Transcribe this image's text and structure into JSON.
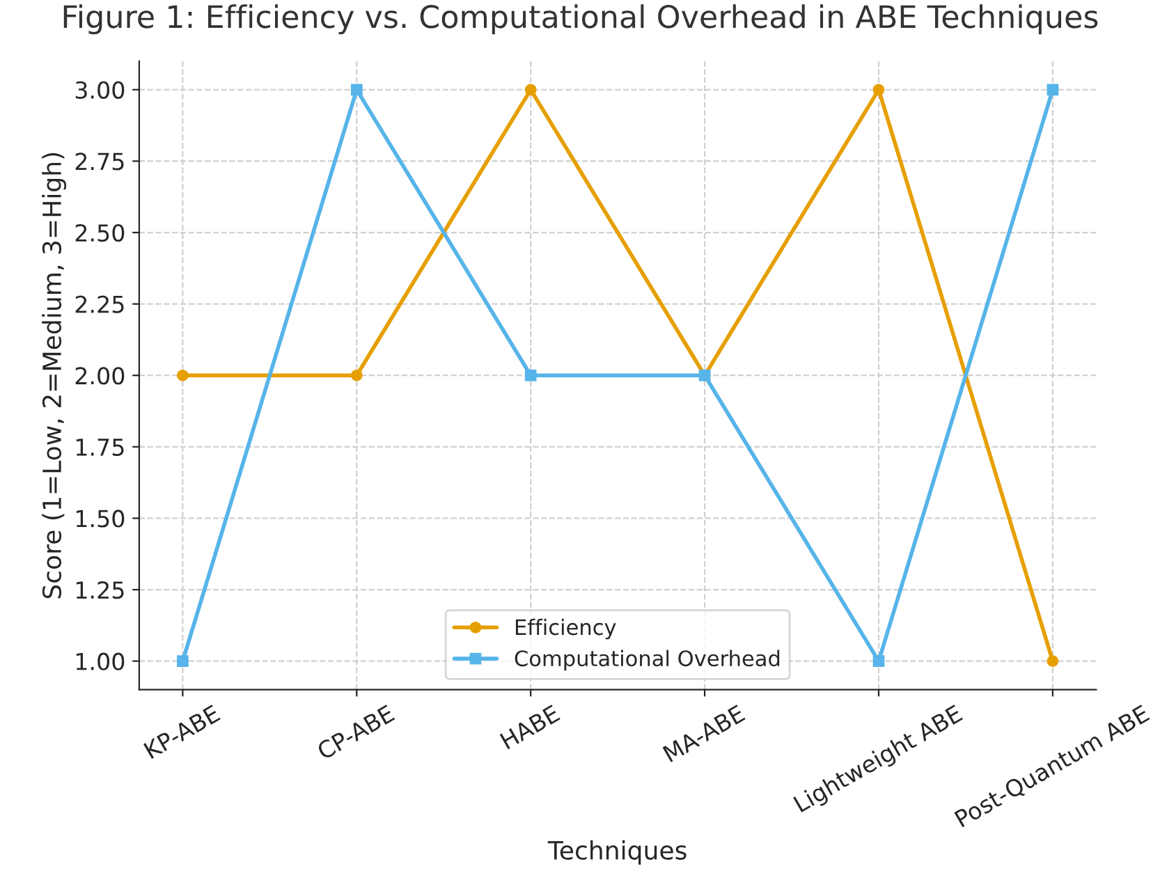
{
  "chart_data": {
    "type": "line",
    "title": "Figure 1: Efficiency vs. Computational Overhead in ABE Techniques",
    "xlabel": "Techniques",
    "ylabel": "Score (1=Low, 2=Medium, 3=High)",
    "categories": [
      "KP-ABE",
      "CP-ABE",
      "HABE",
      "MA-ABE",
      "Lightweight ABE",
      "Post-Quantum ABE"
    ],
    "series": [
      {
        "name": "Efficiency",
        "color": "#e69f00",
        "marker": "circle",
        "values": [
          2,
          2,
          3,
          2,
          3,
          1
        ]
      },
      {
        "name": "Computational Overhead",
        "color": "#56b4e9",
        "marker": "square",
        "values": [
          1,
          3,
          2,
          2,
          1,
          3
        ]
      }
    ],
    "ylim": [
      0.9,
      3.1
    ],
    "yticks": [
      {
        "value": 1,
        "label": "1.00"
      },
      {
        "value": 1.25,
        "label": "1.25"
      },
      {
        "value": 1.5,
        "label": "1.50"
      },
      {
        "value": 1.75,
        "label": "1.75"
      },
      {
        "value": 2,
        "label": "2.00"
      },
      {
        "value": 2.25,
        "label": "2.25"
      },
      {
        "value": 2.5,
        "label": "2.50"
      },
      {
        "value": 2.75,
        "label": "2.75"
      },
      {
        "value": 3,
        "label": "3.00"
      }
    ],
    "grid": true,
    "legend": "bottom",
    "line_style": "solid"
  }
}
